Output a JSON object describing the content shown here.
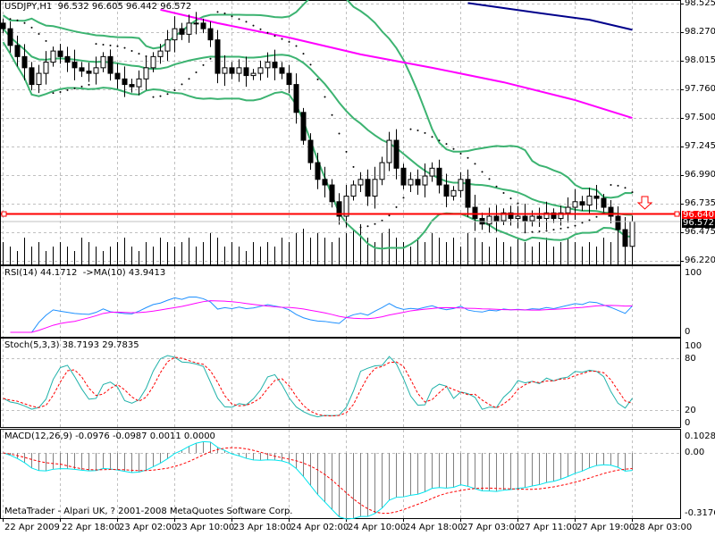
{
  "header": {
    "symbol": "USDJPY,H1",
    "open": "96.532",
    "high": "96.605",
    "low": "96.442",
    "close": "96.572"
  },
  "rsi_label": {
    "name": "RSI(14)",
    "value": "44.1712",
    "ma_name": "->MA(10)",
    "ma_value": "43.9413"
  },
  "stoch_label": {
    "name": "Stoch(5,3,3)",
    "main": "38.7193",
    "signal": "29.7835"
  },
  "macd_label": {
    "name": "MACD(12,26,9)",
    "v1": "-0.0976",
    "v2": "-0.0987",
    "v3": "0.0011",
    "v4": "0.0000"
  },
  "copyright": "MetaTrader - Alpari UK, ? 2001-2008 MetaQuotes Software Corp.",
  "price_axis": [
    "98.525",
    "98.270",
    "98.015",
    "97.760",
    "97.500",
    "97.245",
    "96.990",
    "96.735",
    "96.475",
    "96.220"
  ],
  "rsi_axis": [
    "100",
    "0"
  ],
  "stoch_axis": [
    "100",
    "80",
    "20",
    "0"
  ],
  "macd_axis": [
    "0.1028",
    "0.00",
    "-0.3176"
  ],
  "time_axis": [
    "22 Apr 2009",
    "22 Apr 18:00",
    "23 Apr 02:00",
    "23 Apr 10:00",
    "23 Apr 18:00",
    "24 Apr 02:00",
    "24 Apr 10:00",
    "24 Apr 18:00",
    "27 Apr 03:00",
    "27 Apr 11:00",
    "27 Apr 19:00",
    "28 Apr 03:00"
  ],
  "hline_label": "96.640",
  "bid_label": "96.572",
  "colors": {
    "bands": "#3cb371",
    "ma_mid": "#ff00ff",
    "ma_slow": "#00008b",
    "hline": "#ff0000",
    "rsi": "#1e90ff",
    "rsi_ma": "#ff00ff",
    "stoch_main": "#20b2aa",
    "stoch_signal": "#ff0000",
    "macd_main": "#00e5ee",
    "macd_signal": "#ff0000"
  },
  "chart_data": {
    "type": "candlestick",
    "title": "USDJPY,H1",
    "ylim": [
      96.22,
      98.525
    ],
    "hline": 96.64,
    "closes": [
      98.3,
      98.15,
      98.05,
      97.95,
      97.8,
      97.9,
      98.0,
      98.1,
      98.05,
      98.0,
      97.95,
      97.92,
      97.9,
      97.95,
      98.05,
      97.9,
      97.85,
      97.8,
      97.78,
      97.85,
      97.95,
      98.05,
      98.1,
      98.2,
      98.3,
      98.25,
      98.35,
      98.35,
      98.3,
      98.2,
      97.9,
      97.95,
      97.9,
      97.95,
      97.88,
      97.9,
      97.95,
      98.0,
      97.95,
      97.9,
      97.8,
      97.55,
      97.3,
      97.1,
      96.95,
      96.9,
      96.75,
      96.62,
      96.8,
      96.9,
      96.95,
      96.8,
      96.95,
      97.1,
      97.3,
      97.05,
      96.9,
      96.95,
      96.9,
      96.98,
      97.05,
      96.9,
      96.8,
      96.85,
      96.95,
      96.7,
      96.6,
      96.55,
      96.62,
      96.58,
      96.65,
      96.6,
      96.62,
      96.58,
      96.62,
      96.6,
      96.65,
      96.6,
      96.65,
      96.7,
      96.75,
      96.72,
      96.8,
      96.78,
      96.7,
      96.62,
      96.5,
      96.35,
      96.572
    ],
    "ma_mid": [
      [
        22,
        98.47
      ],
      [
        30,
        98.35
      ],
      [
        40,
        98.22
      ],
      [
        50,
        98.07
      ],
      [
        60,
        97.95
      ],
      [
        70,
        97.82
      ],
      [
        80,
        97.66
      ],
      [
        88,
        97.5
      ]
    ],
    "ma_slow": [
      [
        65,
        98.53
      ],
      [
        75,
        98.44
      ],
      [
        82,
        98.38
      ],
      [
        88,
        98.29
      ]
    ],
    "volumes": [
      5,
      4,
      3,
      6,
      4,
      5,
      3,
      4,
      5,
      4,
      3,
      6,
      5,
      4,
      3,
      4,
      5,
      6,
      4,
      3,
      5,
      4,
      6,
      5,
      4,
      5,
      6,
      4,
      5,
      7,
      6,
      4,
      5,
      4,
      3,
      5,
      4,
      5,
      4,
      6,
      5,
      7,
      8,
      6,
      7,
      6,
      5,
      6,
      7,
      8,
      9,
      6,
      5,
      7,
      8,
      6,
      5,
      4,
      6,
      5,
      7,
      6,
      5,
      6,
      4,
      7,
      6,
      5,
      4,
      6,
      5,
      4,
      6,
      5,
      4,
      5,
      6,
      4,
      5,
      6,
      5,
      4,
      5,
      4,
      6,
      5,
      7,
      6,
      3
    ]
  }
}
